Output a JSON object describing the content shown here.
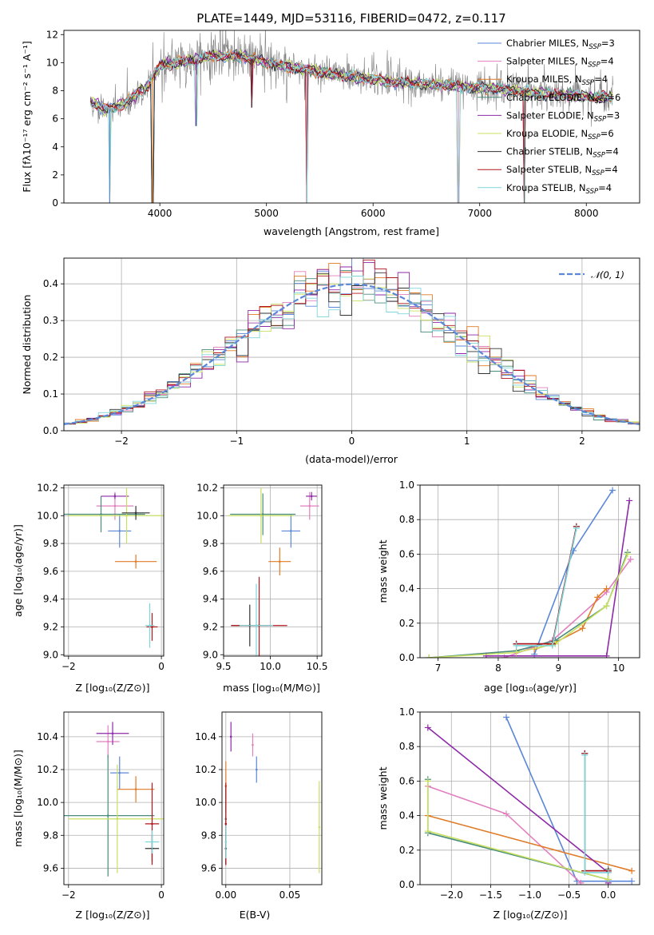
{
  "colors": {
    "Chabrier MILES": "#5b87d8",
    "Salpeter MILES": "#e27fbf",
    "Kroupa MILES": "#e07b27",
    "Chabrier ELODIE": "#4a8c7c",
    "Salpeter ELODIE": "#8e2aa8",
    "Kroupa ELODIE": "#c8e060",
    "Chabrier STELIB": "#333333",
    "Salpeter STELIB": "#b0161c",
    "Kroupa STELIB": "#7fd6da",
    "normal": "#5b87d8",
    "spectrum": "#808080",
    "grid": "#b0b0b0"
  },
  "chart_data": [
    {
      "id": "spectrum",
      "type": "line",
      "title": "PLATE=1449, MJD=53116, FIBERID=0472, z=0.117",
      "xlabel": "wavelength [Angstrom, rest frame]",
      "ylabel": "Flux [fλ10⁻¹⁷ erg cm⁻² s⁻¹ A⁻¹]",
      "xlim": [
        3100,
        8500
      ],
      "ylim": [
        0,
        12.3
      ],
      "xticks": [
        4000,
        5000,
        6000,
        7000,
        8000
      ],
      "yticks": [
        0,
        2,
        4,
        6,
        8,
        10,
        12
      ],
      "grid": false,
      "legend_position": "right",
      "legend": [
        {
          "name": "Chabrier MILES, N",
          "sub": "SSP",
          "tail": "=3"
        },
        {
          "name": "Salpeter MILES, N",
          "sub": "SSP",
          "tail": "=4"
        },
        {
          "name": "Kroupa MILES, N",
          "sub": "SSP",
          "tail": "=4"
        },
        {
          "name": "Chabrier ELODIE, N",
          "sub": "SSP",
          "tail": "=6"
        },
        {
          "name": "Salpeter ELODIE, N",
          "sub": "SSP",
          "tail": "=3"
        },
        {
          "name": "Kroupa ELODIE, N",
          "sub": "SSP",
          "tail": "=6"
        },
        {
          "name": "Chabrier STELIB, N",
          "sub": "SSP",
          "tail": "=4"
        },
        {
          "name": "Salpeter STELIB, N",
          "sub": "SSP",
          "tail": "=4"
        },
        {
          "name": "Kroupa STELIB, N",
          "sub": "SSP",
          "tail": "=4"
        }
      ],
      "continuum": [
        [
          3350,
          7.2
        ],
        [
          3500,
          6.6
        ],
        [
          3700,
          7.2
        ],
        [
          3900,
          8.5
        ],
        [
          4000,
          9.8
        ],
        [
          4200,
          10.0
        ],
        [
          4500,
          10.5
        ],
        [
          4800,
          10.4
        ],
        [
          5000,
          10.0
        ],
        [
          5300,
          9.6
        ],
        [
          5600,
          9.2
        ],
        [
          6000,
          8.8
        ],
        [
          6400,
          8.5
        ],
        [
          6800,
          8.3
        ],
        [
          7200,
          8.1
        ],
        [
          7600,
          7.8
        ],
        [
          8000,
          7.6
        ],
        [
          8250,
          7.5
        ]
      ],
      "dips": [
        [
          3530,
          0.0
        ],
        [
          3933,
          0.0
        ],
        [
          4340,
          5.5
        ],
        [
          4861,
          6.8
        ],
        [
          5380,
          0.0
        ],
        [
          6800,
          0.0
        ],
        [
          7420,
          0.0
        ]
      ]
    },
    {
      "id": "residuals",
      "type": "bar",
      "xlabel": "(data-model)/error",
      "ylabel": "Normed distribution",
      "xlim": [
        -2.5,
        2.5
      ],
      "ylim": [
        0,
        0.47
      ],
      "xticks": [
        -2,
        -1,
        0,
        1,
        2
      ],
      "yticks": [
        0.0,
        0.1,
        0.2,
        0.3,
        0.4
      ],
      "grid": true,
      "legend_position": "top-right",
      "legend": {
        "label": "𝒩(0, 1)"
      },
      "bin_width": 0.1,
      "bin_start": -2.5
    },
    {
      "id": "age-vs-Z",
      "type": "scatter",
      "xlabel": "Z [log₁₀(Z/Z⊙)]",
      "ylabel": "age  [log₁₀(age/yr)]",
      "xlim": [
        -2.1,
        0.05
      ],
      "ylim": [
        8.99,
        10.22
      ],
      "xticks": [
        -2,
        0
      ],
      "xtick_labels": [
        "−2",
        "0"
      ],
      "yticks": [
        9.0,
        9.2,
        9.4,
        9.6,
        9.8,
        10.0,
        10.2
      ],
      "grid": true,
      "points": [
        {
          "series": "Chabrier MILES",
          "x": -0.9,
          "y": 9.89,
          "xerr": 0.25,
          "yerr": 0.12
        },
        {
          "series": "Salpeter MILES",
          "x": -1.0,
          "y": 10.07,
          "xerr": 0.4,
          "yerr": 0.1
        },
        {
          "series": "Kroupa MILES",
          "x": -0.55,
          "y": 9.67,
          "xerr": 0.45,
          "yerr": 0.05
        },
        {
          "series": "Chabrier ELODIE",
          "x": -1.3,
          "y": 10.01,
          "xerr": 0.95,
          "yerr": 0.13
        },
        {
          "series": "Salpeter ELODIE",
          "x": -1.0,
          "y": 10.14,
          "xerr": 0.3,
          "yerr": 0.02
        },
        {
          "series": "Kroupa ELODIE",
          "x": -0.75,
          "y": 10.0,
          "xerr": 1.25,
          "yerr": 0.2
        },
        {
          "series": "Chabrier STELIB",
          "x": -0.55,
          "y": 10.02,
          "xerr": 0.3,
          "yerr": 0.05
        },
        {
          "series": "Salpeter STELIB",
          "x": -0.2,
          "y": 9.2,
          "xerr": 0.12,
          "yerr": 0.1
        },
        {
          "series": "Kroupa STELIB",
          "x": -0.25,
          "y": 9.21,
          "xerr": 0.1,
          "yerr": 0.16
        }
      ]
    },
    {
      "id": "age-vs-mass",
      "type": "scatter",
      "xlabel": "mass [log₁₀(M/M⊙)]",
      "ylabel": "",
      "xlim": [
        9.5,
        10.55
      ],
      "ylim": [
        8.99,
        10.22
      ],
      "xticks": [
        9.5,
        10.0,
        10.5
      ],
      "yticks": [
        9.0,
        9.2,
        9.4,
        9.6,
        9.8,
        10.0,
        10.2
      ],
      "grid": true,
      "points": [
        {
          "series": "Chabrier MILES",
          "x": 10.22,
          "y": 9.89,
          "xerr": 0.1,
          "yerr": 0.12
        },
        {
          "series": "Salpeter MILES",
          "x": 10.42,
          "y": 10.07,
          "xerr": 0.1,
          "yerr": 0.1
        },
        {
          "series": "Kroupa MILES",
          "x": 10.1,
          "y": 9.67,
          "xerr": 0.12,
          "yerr": 0.1
        },
        {
          "series": "Chabrier ELODIE",
          "x": 9.92,
          "y": 10.01,
          "xerr": 0.35,
          "yerr": 0.15
        },
        {
          "series": "Salpeter ELODIE",
          "x": 10.44,
          "y": 10.14,
          "xerr": 0.06,
          "yerr": 0.03
        },
        {
          "series": "Kroupa ELODIE",
          "x": 9.9,
          "y": 10.0,
          "xerr": 0.35,
          "yerr": 0.2
        },
        {
          "series": "Chabrier STELIB",
          "x": 9.78,
          "y": 9.21,
          "xerr": 0.2,
          "yerr": 0.15
        },
        {
          "series": "Salpeter STELIB",
          "x": 9.88,
          "y": 9.21,
          "xerr": 0.3,
          "yerr": 0.35
        },
        {
          "series": "Kroupa STELIB",
          "x": 9.85,
          "y": 9.21,
          "xerr": 0.18,
          "yerr": 0.3
        }
      ]
    },
    {
      "id": "weight-vs-age",
      "type": "line",
      "xlabel": "age  [log₁₀(age/yr)]",
      "ylabel": "mass weight",
      "xlim": [
        6.7,
        10.35
      ],
      "ylim": [
        0,
        1.0
      ],
      "xticks": [
        7,
        8,
        9,
        10
      ],
      "yticks": [
        0.0,
        0.2,
        0.4,
        0.6,
        0.8,
        1.0
      ],
      "grid": true,
      "series": [
        {
          "name": "Chabrier MILES",
          "x": [
            8.6,
            9.25,
            9.9
          ],
          "y": [
            0.02,
            0.62,
            0.97
          ]
        },
        {
          "name": "Salpeter MILES",
          "x": [
            8.1,
            8.9,
            9.8,
            10.2
          ],
          "y": [
            0.0,
            0.1,
            0.38,
            0.57
          ]
        },
        {
          "name": "Kroupa MILES",
          "x": [
            8.6,
            8.9,
            9.4,
            9.65,
            9.8
          ],
          "y": [
            0.05,
            0.08,
            0.17,
            0.35,
            0.4
          ]
        },
        {
          "name": "Chabrier ELODIE",
          "x": [
            6.85,
            8.3,
            8.95,
            9.8,
            10.15
          ],
          "y": [
            0.0,
            0.04,
            0.1,
            0.3,
            0.61
          ]
        },
        {
          "name": "Salpeter ELODIE",
          "x": [
            7.8,
            9.8,
            10.18
          ],
          "y": [
            0.01,
            0.01,
            0.91
          ]
        },
        {
          "name": "Kroupa ELODIE",
          "x": [
            6.85,
            8.3,
            8.95,
            9.8,
            10.15
          ],
          "y": [
            0.0,
            0.03,
            0.08,
            0.3,
            0.6
          ]
        },
        {
          "name": "Chabrier STELIB",
          "x": [
            8.3,
            8.9,
            9.3
          ],
          "y": [
            0.08,
            0.08,
            0.76
          ]
        },
        {
          "name": "Salpeter STELIB",
          "x": [
            8.3,
            8.9,
            9.3
          ],
          "y": [
            0.08,
            0.08,
            0.76
          ]
        },
        {
          "name": "Kroupa STELIB",
          "x": [
            8.3,
            8.9,
            9.3
          ],
          "y": [
            0.07,
            0.07,
            0.75
          ]
        }
      ]
    },
    {
      "id": "mass-vs-Z",
      "type": "scatter",
      "xlabel": "Z [log₁₀(Z/Z⊙)]",
      "ylabel": "mass [log₁₀(M/M⊙)]",
      "xlim": [
        -2.1,
        0.05
      ],
      "ylim": [
        9.5,
        10.55
      ],
      "xticks": [
        -2,
        0
      ],
      "xtick_labels": [
        "−2",
        "0"
      ],
      "yticks": [
        9.6,
        9.8,
        10.0,
        10.2,
        10.4
      ],
      "grid": true,
      "points": [
        {
          "series": "Chabrier MILES",
          "x": -0.9,
          "y": 10.18,
          "xerr": 0.2,
          "yerr": 0.1
        },
        {
          "series": "Salpeter MILES",
          "x": -1.15,
          "y": 10.37,
          "xerr": 0.25,
          "yerr": 0.1
        },
        {
          "series": "Kroupa MILES",
          "x": -0.55,
          "y": 10.08,
          "xerr": 0.4,
          "yerr": 0.08
        },
        {
          "series": "Chabrier ELODIE",
          "x": -1.15,
          "y": 9.92,
          "xerr": 1.0,
          "yerr": 0.37
        },
        {
          "series": "Salpeter ELODIE",
          "x": -1.05,
          "y": 10.42,
          "xerr": 0.35,
          "yerr": 0.07
        },
        {
          "series": "Kroupa ELODIE",
          "x": -0.95,
          "y": 9.9,
          "xerr": 1.05,
          "yerr": 0.33
        },
        {
          "series": "Chabrier STELIB",
          "x": -0.2,
          "y": 9.72,
          "xerr": 0.15,
          "yerr": 0.08
        },
        {
          "series": "Salpeter STELIB",
          "x": -0.2,
          "y": 9.87,
          "xerr": 0.15,
          "yerr": 0.25
        },
        {
          "series": "Kroupa STELIB",
          "x": -0.2,
          "y": 9.76,
          "xerr": 0.15,
          "yerr": 0.07
        }
      ]
    },
    {
      "id": "mass-vs-EBV",
      "type": "scatter",
      "xlabel": "E(B-V)",
      "ylabel": "",
      "xlim": [
        -0.003,
        0.075
      ],
      "ylim": [
        9.5,
        10.55
      ],
      "xticks": [
        0.0,
        0.05
      ],
      "xtick_labels": [
        "0.00",
        "0.05"
      ],
      "yticks": [
        9.6,
        9.8,
        10.0,
        10.2,
        10.4
      ],
      "grid": true,
      "points": [
        {
          "series": "Chabrier MILES",
          "x": 0.024,
          "y": 10.2,
          "xerr": 0,
          "yerr": 0.08
        },
        {
          "series": "Salpeter MILES",
          "x": 0.021,
          "y": 10.35,
          "xerr": 0,
          "yerr": 0.07
        },
        {
          "series": "Kroupa MILES",
          "x": 0.0,
          "y": 10.1,
          "xerr": 0,
          "yerr": 0.15
        },
        {
          "series": "Chabrier ELODIE",
          "x": 0.0,
          "y": 9.9,
          "xerr": 0,
          "yerr": 0.2
        },
        {
          "series": "Salpeter ELODIE",
          "x": 0.004,
          "y": 10.4,
          "xerr": 0,
          "yerr": 0.09
        },
        {
          "series": "Kroupa ELODIE",
          "x": 0.073,
          "y": 9.85,
          "xerr": 0,
          "yerr": 0.28
        },
        {
          "series": "Chabrier STELIB",
          "x": 0.0,
          "y": 9.72,
          "xerr": 0,
          "yerr": 0.1
        },
        {
          "series": "Salpeter STELIB",
          "x": 0.0,
          "y": 9.87,
          "xerr": 0,
          "yerr": 0.25
        },
        {
          "series": "Kroupa STELIB",
          "x": 0.0,
          "y": 9.76,
          "xerr": 0,
          "yerr": 0.1
        }
      ]
    },
    {
      "id": "weight-vs-Z",
      "type": "line",
      "xlabel": "Z [log₁₀(Z/Z⊙)]",
      "ylabel": "mass weight",
      "xlim": [
        -2.4,
        0.4
      ],
      "ylim": [
        0,
        1.0
      ],
      "xticks": [
        -2.0,
        -1.5,
        -1.0,
        -0.5,
        0.0
      ],
      "xtick_labels": [
        "−2.0",
        "−1.5",
        "−1.0",
        "−0.5",
        "0.0"
      ],
      "yticks": [
        0.0,
        0.2,
        0.4,
        0.6,
        0.8,
        1.0
      ],
      "grid": true,
      "series": [
        {
          "name": "Chabrier MILES",
          "x": [
            -1.3,
            -0.4,
            0.3
          ],
          "y": [
            0.97,
            0.02,
            0.02
          ]
        },
        {
          "name": "Salpeter MILES",
          "x": [
            -2.3,
            -1.3,
            -0.35
          ],
          "y": [
            0.57,
            0.41,
            0.01
          ]
        },
        {
          "name": "Kroupa MILES",
          "x": [
            -2.3,
            0.3
          ],
          "y": [
            0.4,
            0.08
          ]
        },
        {
          "name": "Chabrier ELODIE",
          "x": [
            -2.3,
            -2.3,
            0.0,
            0.0
          ],
          "y": [
            0.61,
            0.3,
            0.03,
            0.09
          ]
        },
        {
          "name": "Salpeter ELODIE",
          "x": [
            -2.3,
            0.0,
            0.0
          ],
          "y": [
            0.91,
            0.07,
            0.01
          ]
        },
        {
          "name": "Kroupa ELODIE",
          "x": [
            -2.3,
            -2.3,
            0.0,
            0.0
          ],
          "y": [
            0.6,
            0.31,
            0.03,
            0.08
          ]
        },
        {
          "name": "Chabrier STELIB",
          "x": [
            -0.3,
            -0.3,
            0.0
          ],
          "y": [
            0.76,
            0.08,
            0.08
          ]
        },
        {
          "name": "Salpeter STELIB",
          "x": [
            -0.3,
            -0.3,
            0.0
          ],
          "y": [
            0.76,
            0.08,
            0.08
          ]
        },
        {
          "name": "Kroupa STELIB",
          "x": [
            -0.3,
            -0.3,
            0.0
          ],
          "y": [
            0.75,
            0.07,
            0.07
          ]
        }
      ]
    }
  ]
}
